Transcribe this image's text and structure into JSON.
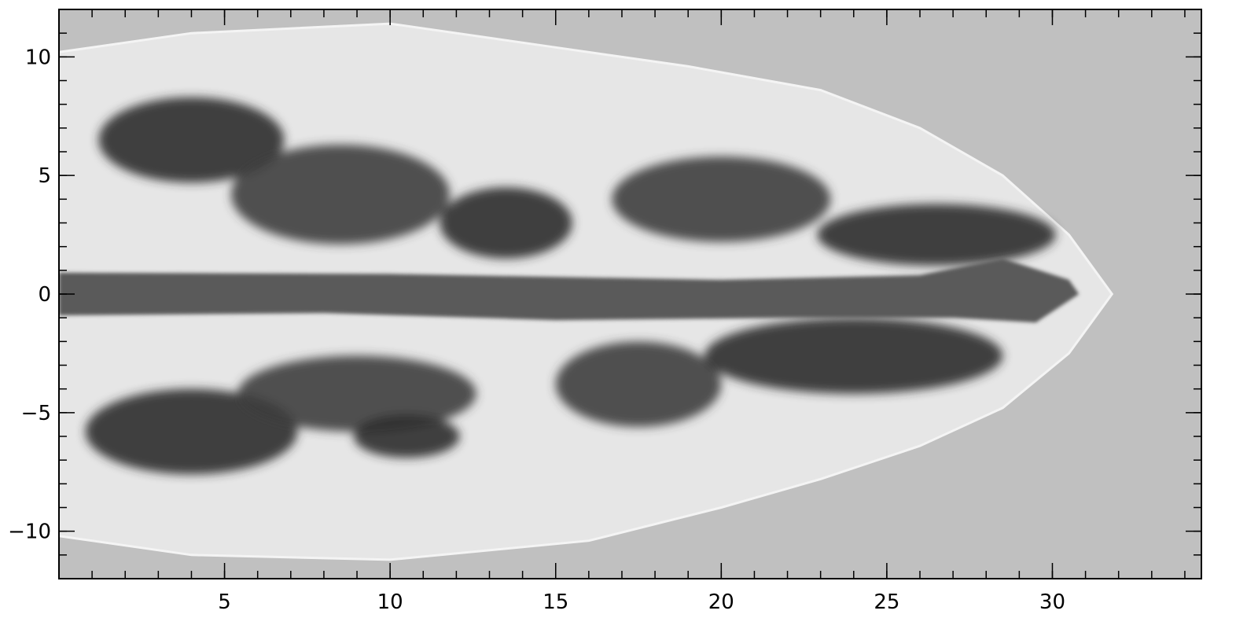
{
  "chart_data": {
    "type": "heatmap",
    "title": "",
    "xlabel": "",
    "ylabel": "",
    "colormap": "grayscale",
    "background_color": "#c0c0c0",
    "xlim": [
      0,
      34.5
    ],
    "ylim": [
      -12,
      12
    ],
    "x_ticks": [
      5,
      10,
      15,
      20,
      25,
      30
    ],
    "x_tick_labels": [
      "5",
      "10",
      "15",
      "20",
      "25",
      "30"
    ],
    "y_ticks": [
      -10,
      -5,
      0,
      5,
      10
    ],
    "y_tick_labels": [
      "−10",
      "−5",
      "0",
      "5",
      "10"
    ],
    "x_minor_step": 1,
    "y_minor_step": 1,
    "cocoon_outline": [
      [
        0,
        10.2
      ],
      [
        4,
        11.0
      ],
      [
        10,
        11.4
      ],
      [
        15,
        10.4
      ],
      [
        19,
        9.6
      ],
      [
        23,
        8.6
      ],
      [
        26,
        7.0
      ],
      [
        28.5,
        5.0
      ],
      [
        30.5,
        2.5
      ],
      [
        31.8,
        0.0
      ],
      [
        30.5,
        -2.5
      ],
      [
        28.5,
        -4.8
      ],
      [
        26,
        -6.4
      ],
      [
        23,
        -7.8
      ],
      [
        20,
        -9.0
      ],
      [
        16,
        -10.4
      ],
      [
        10,
        -11.2
      ],
      [
        4,
        -11.0
      ],
      [
        0,
        -10.2
      ]
    ],
    "jet_outline": [
      [
        0,
        0.9
      ],
      [
        10,
        0.85
      ],
      [
        20,
        0.6
      ],
      [
        26,
        0.8
      ],
      [
        28.5,
        1.5
      ],
      [
        30.5,
        0.6
      ],
      [
        30.8,
        0
      ],
      [
        29.5,
        -1.2
      ],
      [
        27,
        -1.0
      ],
      [
        22,
        -1.0
      ],
      [
        15,
        -1.1
      ],
      [
        8,
        -0.8
      ],
      [
        0,
        -0.9
      ]
    ],
    "upper_eddies": [
      {
        "x": 4,
        "y": 6.5,
        "rx": 2.8,
        "ry": 1.8
      },
      {
        "x": 8.5,
        "y": 4.2,
        "rx": 3.3,
        "ry": 2.1
      },
      {
        "x": 13.5,
        "y": 3.0,
        "rx": 2.0,
        "ry": 1.5
      },
      {
        "x": 20,
        "y": 4.0,
        "rx": 3.3,
        "ry": 1.8
      },
      {
        "x": 26.5,
        "y": 2.5,
        "rx": 3.6,
        "ry": 1.3
      }
    ],
    "lower_eddies": [
      {
        "x": 4,
        "y": -5.8,
        "rx": 3.2,
        "ry": 1.8
      },
      {
        "x": 9,
        "y": -4.2,
        "rx": 3.6,
        "ry": 1.6
      },
      {
        "x": 10.5,
        "y": -6.0,
        "rx": 1.6,
        "ry": 0.9
      },
      {
        "x": 17.5,
        "y": -3.8,
        "rx": 2.5,
        "ry": 1.8
      },
      {
        "x": 24,
        "y": -2.6,
        "rx": 4.5,
        "ry": 1.6
      }
    ]
  }
}
